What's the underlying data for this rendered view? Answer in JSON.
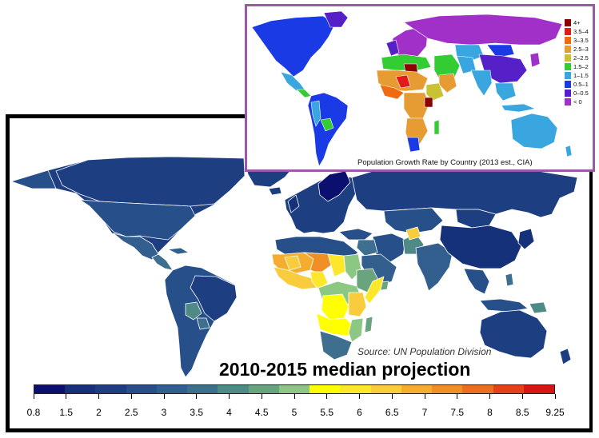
{
  "main_map": {
    "source": "Source: UN Population Division",
    "title": "2010-2015 median projection",
    "colorbar": {
      "colors": [
        "#0b0f6e",
        "#14317a",
        "#1d3f82",
        "#27508a",
        "#335f8e",
        "#3e6f8e",
        "#4f8a86",
        "#69a47e",
        "#8cc884",
        "#ffff00",
        "#fde72a",
        "#f8cc3c",
        "#f4ad2e",
        "#ef8f26",
        "#eb6f1f",
        "#e4401a",
        "#d71515"
      ],
      "tick_labels": [
        "0.8",
        "1.5",
        "2",
        "2.5",
        "3",
        "3.5",
        "4",
        "4.5",
        "5",
        "5.5",
        "6",
        "6.5",
        "7",
        "7.5",
        "8",
        "8.5",
        "9.25"
      ]
    }
  },
  "inset_map": {
    "caption": "Population Growth Rate by Country (2013 est., CIA)",
    "border_color": "#9a5aa8",
    "legend": [
      {
        "label": "4+",
        "color": "#8b0000"
      },
      {
        "label": "3.5–4",
        "color": "#e31a1c"
      },
      {
        "label": "3–3.5",
        "color": "#f06a10"
      },
      {
        "label": "2.5–3",
        "color": "#e69b33"
      },
      {
        "label": "2–2.5",
        "color": "#c9c234"
      },
      {
        "label": "1.5–2",
        "color": "#33cc33"
      },
      {
        "label": "1–1.5",
        "color": "#3aa6e0"
      },
      {
        "label": "0.5–1",
        "color": "#1a3ae6"
      },
      {
        "label": "0–0.5",
        "color": "#5520c8"
      },
      {
        "label": "< 0",
        "color": "#a030c8"
      }
    ]
  }
}
